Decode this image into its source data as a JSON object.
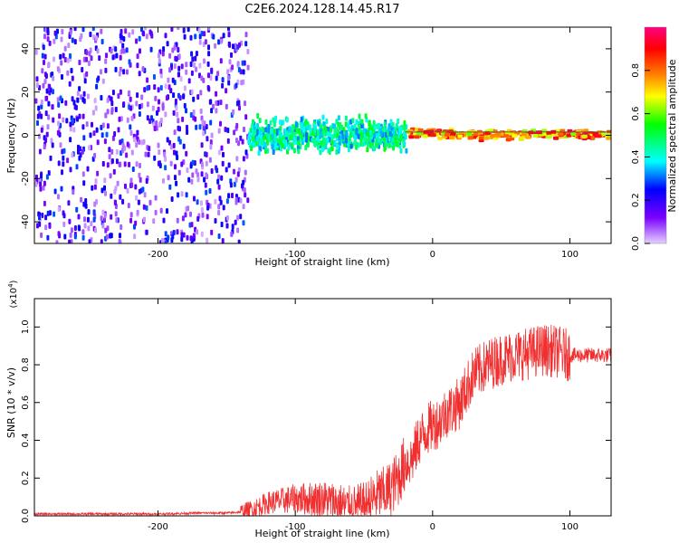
{
  "title": "C2E6.2024.128.14.45.R17",
  "colorbar": {
    "label": "Normalized spectral amplitude",
    "ticks": [
      "0.0",
      "0.2",
      "0.4",
      "0.6",
      "0.8"
    ],
    "range": [
      0,
      1
    ],
    "colors": [
      "#e6d0ff",
      "#7a00ff",
      "#0000ff",
      "#00ffff",
      "#00ff00",
      "#ffff00",
      "#ff8000",
      "#ff0000",
      "#ff0080"
    ]
  },
  "chart_data": [
    {
      "type": "heatmap",
      "xlabel": "Height of straight line (km)",
      "ylabel": "Frequency (Hz)",
      "xlim": [
        -290,
        130
      ],
      "ylim": [
        -50,
        50
      ],
      "xticks": [
        "-200",
        "-100",
        "0",
        "100"
      ],
      "xtick_values": [
        -200,
        -100,
        0,
        100
      ],
      "yticks": [
        "-40",
        "-20",
        "0",
        "20",
        "40"
      ],
      "ytick_values": [
        -40,
        -20,
        0,
        20,
        40
      ],
      "description_regions": [
        {
          "x_range": [
            -290,
            -135
          ],
          "freq_range": [
            -50,
            50
          ],
          "amplitude": [
            0.1,
            0.3
          ]
        },
        {
          "x_range": [
            -135,
            -20
          ],
          "freq_range": [
            -10,
            10
          ],
          "amplitude": [
            0.3,
            0.55
          ]
        },
        {
          "x_range": [
            -20,
            130
          ],
          "freq_range": [
            -3,
            3
          ],
          "amplitude": [
            0.6,
            0.95
          ]
        }
      ]
    },
    {
      "type": "line",
      "xlabel": "Height of straight line (km)",
      "ylabel": "SNR (10 * v/v)",
      "exponent_label": "(x10",
      "exponent_power": "4",
      "exponent_close": ")",
      "xlim": [
        -290,
        130
      ],
      "ylim": [
        0,
        1.15
      ],
      "xticks": [
        "-200",
        "-100",
        "0",
        "100"
      ],
      "xtick_values": [
        -200,
        -100,
        0,
        100
      ],
      "yticks": [
        "0.0",
        "0.2",
        "0.4",
        "0.6",
        "0.8",
        "1.0"
      ],
      "ytick_values": [
        0,
        0.2,
        0.4,
        0.6,
        0.8,
        1.0
      ],
      "color": "#f03030",
      "series": [
        {
          "x": [
            -290,
            -260,
            -230,
            -200,
            -170,
            -150,
            -140,
            -130,
            -120,
            -110,
            -100,
            -90,
            -80,
            -70,
            -60,
            -50,
            -45,
            -40,
            -35,
            -30,
            -25,
            -20,
            -15,
            -10,
            -5,
            0,
            5,
            10,
            15,
            20,
            25,
            30,
            40,
            50,
            60,
            70,
            80,
            90,
            100,
            110,
            120,
            130
          ],
          "values": [
            0.01,
            0.01,
            0.01,
            0.01,
            0.015,
            0.015,
            0.02,
            0.04,
            0.07,
            0.08,
            0.09,
            0.09,
            0.09,
            0.07,
            0.04,
            0.05,
            0.08,
            0.11,
            0.12,
            0.15,
            0.2,
            0.28,
            0.3,
            0.4,
            0.45,
            0.48,
            0.5,
            0.55,
            0.57,
            0.6,
            0.68,
            0.75,
            0.8,
            0.83,
            0.85,
            0.86,
            0.88,
            0.87,
            0.85,
            0.85,
            0.85,
            0.85
          ]
        }
      ]
    }
  ]
}
